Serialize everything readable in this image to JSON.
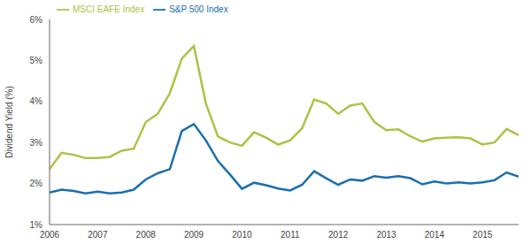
{
  "chart_data": {
    "type": "line",
    "x": [
      2006,
      2006.25,
      2006.5,
      2006.75,
      2007,
      2007.25,
      2007.5,
      2007.75,
      2008,
      2008.25,
      2008.5,
      2008.75,
      2009,
      2009.25,
      2009.5,
      2009.75,
      2010,
      2010.25,
      2010.5,
      2010.75,
      2011,
      2011.25,
      2011.5,
      2011.75,
      2012,
      2012.25,
      2012.5,
      2012.75,
      2013,
      2013.25,
      2013.5,
      2013.75,
      2014,
      2014.25,
      2014.5,
      2014.75,
      2015,
      2015.25,
      2015.5,
      2015.75
    ],
    "series": [
      {
        "name": "MSCI EAFE Index",
        "color": "#a8c545",
        "values": [
          2.35,
          2.75,
          2.7,
          2.62,
          2.62,
          2.65,
          2.8,
          2.85,
          3.5,
          3.7,
          4.2,
          5.05,
          5.35,
          3.95,
          3.15,
          3.0,
          2.92,
          3.25,
          3.12,
          2.95,
          3.05,
          3.35,
          4.05,
          3.95,
          3.7,
          3.9,
          3.95,
          3.5,
          3.3,
          3.32,
          3.15,
          3.02,
          3.1,
          3.12,
          3.13,
          3.1,
          2.95,
          3.0,
          3.33,
          3.18
        ]
      },
      {
        "name": "S&P 500 Index",
        "color": "#1a6fb0",
        "values": [
          1.78,
          1.85,
          1.82,
          1.76,
          1.8,
          1.76,
          1.78,
          1.85,
          2.1,
          2.25,
          2.35,
          3.28,
          3.45,
          3.05,
          2.55,
          2.22,
          1.87,
          2.02,
          1.96,
          1.88,
          1.83,
          1.97,
          2.3,
          2.13,
          1.97,
          2.1,
          2.07,
          2.18,
          2.14,
          2.18,
          2.13,
          1.98,
          2.05,
          2.0,
          2.03,
          2.0,
          2.03,
          2.08,
          2.27,
          2.17
        ]
      }
    ],
    "y_label": "Dividend Yield (%)",
    "xlim": [
      2006,
      2015.75
    ],
    "xticks": [
      2006,
      2007,
      2008,
      2009,
      2010,
      2011,
      2012,
      2013,
      2014,
      2015
    ],
    "ylim": [
      1,
      6
    ],
    "yticks": [
      {
        "value": 1,
        "label": "1%"
      },
      {
        "value": 2,
        "label": "2%"
      },
      {
        "value": 3,
        "label": "3%"
      },
      {
        "value": 4,
        "label": "4%"
      },
      {
        "value": 5,
        "label": "5%"
      },
      {
        "value": 6,
        "label": "6%"
      }
    ],
    "grid": false,
    "legend": "top",
    "tick_labels": true
  }
}
